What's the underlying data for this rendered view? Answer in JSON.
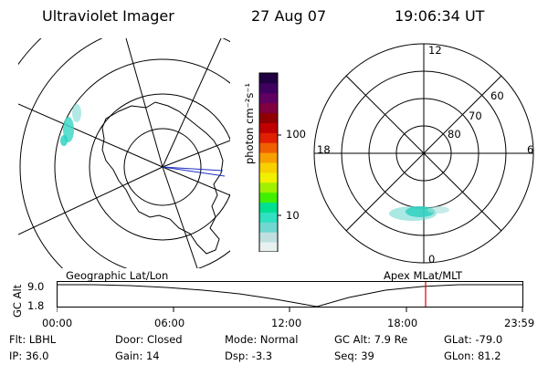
{
  "header": {
    "title": "Ultraviolet Imager",
    "date": "27 Aug 07",
    "time": "19:06:34 UT"
  },
  "colorbar": {
    "unit_label": "photon cm⁻²s⁻¹",
    "ticks": [
      "100",
      "10"
    ],
    "colors": [
      "#e8f0f0",
      "#c0e0e0",
      "#70d8d0",
      "#30e0c0",
      "#00e090",
      "#40f000",
      "#a0f000",
      "#f0f000",
      "#f8d000",
      "#f8a000",
      "#f06000",
      "#e02000",
      "#c00000",
      "#900000",
      "#800040",
      "#600060",
      "#400060",
      "#200040"
    ]
  },
  "mlt_plot": {
    "labels": {
      "top": "12",
      "bottom": "0",
      "left": "18",
      "right": "6"
    },
    "lat_labels": [
      "60",
      "70",
      "80"
    ]
  },
  "track": {
    "left_label": "Geographic Lat/Lon",
    "right_label": "Apex  MLat/MLT",
    "ylabel": "GC Alt",
    "y_ticks": [
      "9.0",
      "1.8"
    ],
    "x_ticks": [
      "00:00",
      "06:00",
      "12:00",
      "18:00",
      "23:59"
    ],
    "marker_color": "#e00000"
  },
  "info": {
    "flt": "Flt: LBHL",
    "ip": "IP: 36.0",
    "door": "Door: Closed",
    "gain": "Gain: 14",
    "mode": "Mode: Normal",
    "dsp": "Dsp:    -3.3",
    "gcalt": "GC Alt: 7.9 Re",
    "seq": "Seq: 39",
    "glat": "GLat: -79.0",
    "glon": "GLon:  81.2"
  }
}
